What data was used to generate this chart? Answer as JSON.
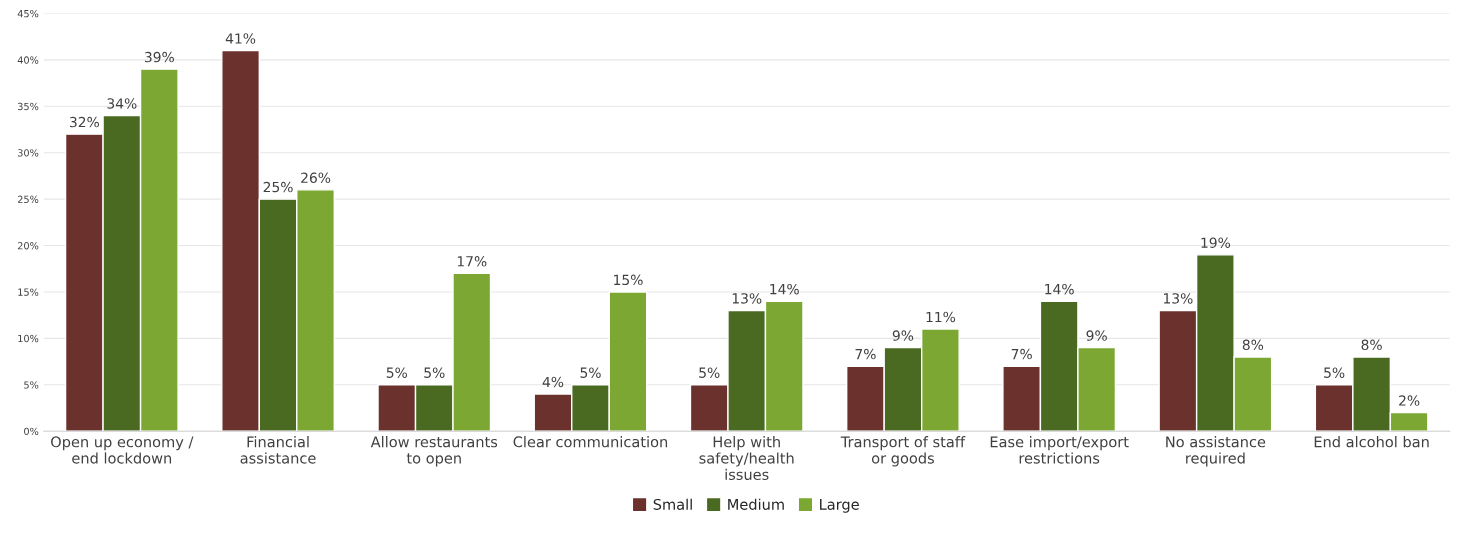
{
  "chart_data": {
    "type": "bar",
    "categories": [
      "Open up economy / end lockdown",
      "Financial assistance",
      "Allow restaurants to open",
      "Clear communication",
      "Help with safety/health issues",
      "Transport of staff or goods",
      "Ease import/export restrictions",
      "No assistance required",
      "End alcohol ban"
    ],
    "series": [
      {
        "name": "Small",
        "color": "#6b312c",
        "values": [
          32,
          41,
          5,
          4,
          5,
          7,
          7,
          13,
          5
        ],
        "value_labels": [
          "32%",
          "41%",
          "5%",
          "4%",
          "5%",
          "7%",
          "7%",
          "13%",
          "5%"
        ]
      },
      {
        "name": "Medium",
        "color": "#4a6a22",
        "values": [
          34,
          25,
          5,
          5,
          13,
          9,
          14,
          19,
          8
        ],
        "value_labels": [
          "34%",
          "25%",
          "5%",
          "5%",
          "13%",
          "9%",
          "14%",
          "19%",
          "8%"
        ]
      },
      {
        "name": "Large",
        "color": "#7ba732",
        "values": [
          39,
          26,
          17,
          15,
          14,
          11,
          9,
          8,
          2
        ],
        "value_labels": [
          "39%",
          "26%",
          "17%",
          "15%",
          "14%",
          "11%",
          "9%",
          "8%",
          "2%"
        ]
      }
    ],
    "ylim": [
      0,
      45
    ],
    "yticks": [
      {
        "value": 0,
        "label": "0%"
      },
      {
        "value": 5,
        "label": "5%"
      },
      {
        "value": 10,
        "label": "10%"
      },
      {
        "value": 15,
        "label": "15%"
      },
      {
        "value": 20,
        "label": "20%"
      },
      {
        "value": 25,
        "label": "25%"
      },
      {
        "value": 30,
        "label": "30%"
      },
      {
        "value": 35,
        "label": "35%"
      },
      {
        "value": 40,
        "label": "40%"
      },
      {
        "value": 45,
        "label": "45%"
      }
    ],
    "grid": "y",
    "legend": "bottom"
  }
}
